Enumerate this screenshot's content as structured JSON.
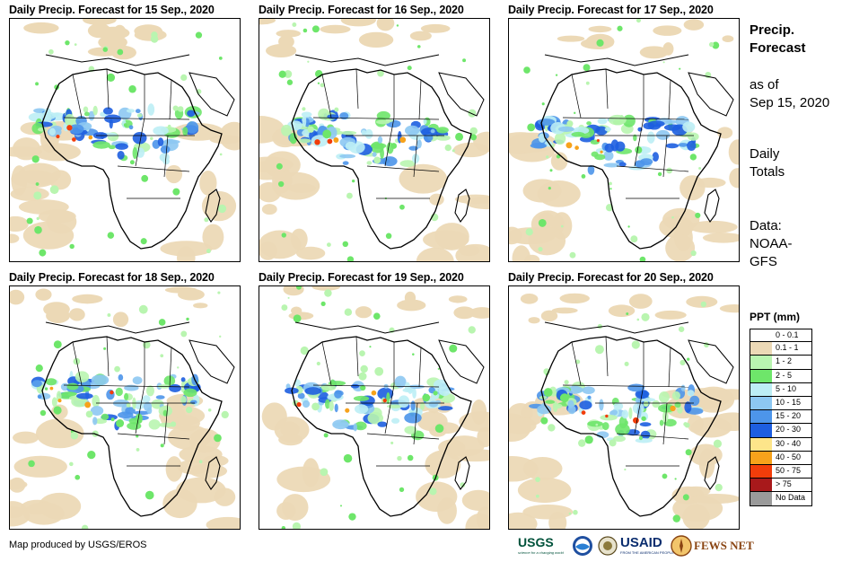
{
  "panels": [
    {
      "title": "Daily Precip. Forecast for 15  Sep., 2020"
    },
    {
      "title": "Daily Precip. Forecast for 16  Sep., 2020"
    },
    {
      "title": "Daily Precip. Forecast for 17  Sep., 2020"
    },
    {
      "title": "Daily Precip. Forecast for 18  Sep., 2020"
    },
    {
      "title": "Daily Precip. Forecast for 19  Sep., 2020"
    },
    {
      "title": "Daily Precip. Forecast for 20  Sep., 2020"
    }
  ],
  "side": {
    "heading_line1": "Precip.",
    "heading_line2": "Forecast",
    "asof_line1": "as of",
    "asof_line2": "Sep 15, 2020",
    "totals_line1": "Daily",
    "totals_line2": "Totals",
    "data_line1": "Data:",
    "data_line2": "NOAA-",
    "data_line3": "GFS"
  },
  "legend": {
    "title": "PPT (mm)",
    "items": [
      {
        "label": "0 - 0.1",
        "color": "#ffffff"
      },
      {
        "label": "0.1 - 1",
        "color": "#ecd9b6"
      },
      {
        "label": "1 - 2",
        "color": "#b9f5b0"
      },
      {
        "label": "2 - 5",
        "color": "#6ee66a"
      },
      {
        "label": "5 - 10",
        "color": "#bdeef5"
      },
      {
        "label": "10 - 15",
        "color": "#8dc8f2"
      },
      {
        "label": "15 - 20",
        "color": "#4d95ea"
      },
      {
        "label": "20 - 30",
        "color": "#1d5ee0"
      },
      {
        "label": "30 - 40",
        "color": "#fde58a"
      },
      {
        "label": "40 - 50",
        "color": "#f7a21b"
      },
      {
        "label": "50 - 75",
        "color": "#f23d0a"
      },
      {
        "label": "> 75",
        "color": "#a8191b"
      },
      {
        "label": "No Data",
        "color": "#9a9a9a"
      }
    ]
  },
  "credit": "Map produced by USGS/EROS",
  "logos": {
    "usgs": "USGS",
    "usgs_tag": "science for a changing world",
    "usaid": "USAID",
    "usaid_tag": "FROM THE AMERICAN PEOPLE",
    "fews": "FEWS NET"
  }
}
